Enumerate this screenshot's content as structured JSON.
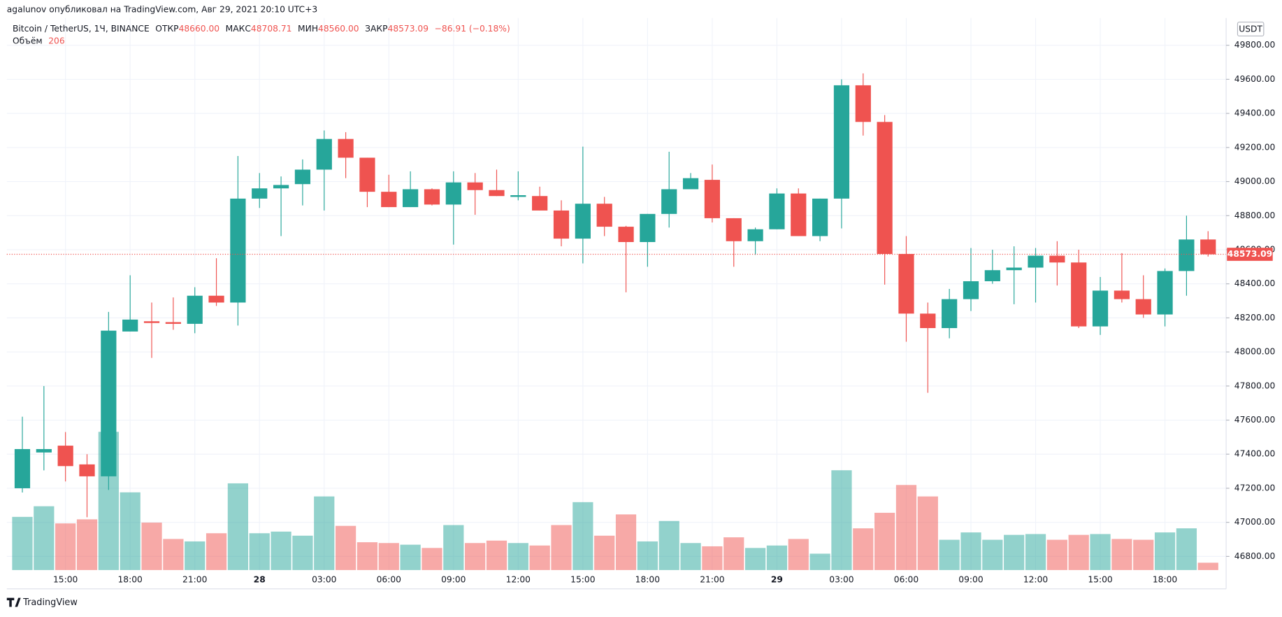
{
  "header": {
    "author_line": "agalunov опубликовал на TradingView.com, Авг 29, 2021 20:10 UTC+3"
  },
  "chart_data": {
    "type": "candlestick",
    "legend": {
      "symbol": "Bitcoin / TetherUS, 1Ч, BINANCE",
      "open_label": "ОТКР",
      "open": "48660.00",
      "high_label": "МАКС",
      "high": "48708.71",
      "low_label": "МИН",
      "low": "48560.00",
      "close_label": "ЗАКР",
      "close": "48573.09",
      "change": "−86.91 (−0.18%)",
      "volume_label": "Объём",
      "volume": "206"
    },
    "currency": "USDT",
    "up_color": "#26a69a",
    "down_color": "#ef5350",
    "grid": true,
    "categories": [
      null,
      null,
      "15:00",
      null,
      null,
      "18:00",
      null,
      null,
      "21:00",
      null,
      null,
      "28",
      null,
      null,
      "03:00",
      null,
      null,
      "06:00",
      null,
      null,
      "09:00",
      null,
      null,
      "12:00",
      null,
      null,
      "15:00",
      null,
      null,
      "18:00",
      null,
      null,
      "21:00",
      null,
      null,
      "29",
      null,
      null,
      "03:00",
      null,
      null,
      "06:00",
      null,
      null,
      "09:00",
      null,
      null,
      "12:00",
      null,
      null,
      "15:00",
      null,
      null,
      "18:00",
      null,
      null
    ],
    "open": [
      47200,
      47410,
      47450,
      47340,
      47270,
      48120,
      48180,
      48175,
      48165,
      48330,
      48290,
      48900,
      48960,
      48985,
      49070,
      49250,
      49140,
      48940,
      48850,
      48955,
      48865,
      48995,
      48950,
      48910,
      48915,
      48830,
      48665,
      48870,
      48735,
      48645,
      48810,
      48955,
      49010,
      48785,
      48650,
      48720,
      48930,
      48680,
      48900,
      49565,
      49350,
      48575,
      48225,
      48140,
      48310,
      48415,
      48480,
      48495,
      48565,
      48525,
      48150,
      48360,
      48310,
      48220,
      48475,
      48660
    ],
    "high": [
      47620,
      47800,
      47530,
      47400,
      48235,
      48450,
      48290,
      48320,
      48380,
      48550,
      49150,
      49050,
      49030,
      49130,
      49300,
      49290,
      49140,
      49040,
      49060,
      48960,
      49060,
      49050,
      49070,
      49060,
      48970,
      48890,
      49205,
      48910,
      48740,
      48810,
      49175,
      49050,
      49100,
      48785,
      48730,
      48960,
      48960,
      48900,
      49600,
      49635,
      49390,
      48680,
      48290,
      48370,
      48610,
      48600,
      48620,
      48610,
      48650,
      48600,
      48440,
      48580,
      48450,
      48490,
      48800,
      48708.71
    ],
    "low": [
      47175,
      47305,
      47240,
      47030,
      47190,
      48120,
      47965,
      48130,
      48110,
      48270,
      48155,
      48845,
      48680,
      48860,
      48830,
      49020,
      48850,
      48850,
      48850,
      48860,
      48630,
      48805,
      48915,
      48890,
      48830,
      48620,
      48520,
      48680,
      48350,
      48500,
      48730,
      48955,
      48760,
      48500,
      48570,
      48720,
      48680,
      48650,
      48725,
      49270,
      48395,
      48060,
      47760,
      48080,
      48240,
      48400,
      48280,
      48290,
      48390,
      48140,
      48100,
      48290,
      48200,
      48150,
      48330,
      48560
    ],
    "close": [
      47430,
      47430,
      47330,
      47270,
      48125,
      48190,
      48170,
      48165,
      48330,
      48290,
      48900,
      48960,
      48980,
      49070,
      49250,
      49140,
      48940,
      48850,
      48955,
      48865,
      48995,
      48950,
      48915,
      48920,
      48830,
      48665,
      48870,
      48735,
      48645,
      48810,
      48955,
      49020,
      48785,
      48650,
      48720,
      48930,
      48680,
      48900,
      49565,
      49350,
      48575,
      48225,
      48140,
      48310,
      48415,
      48480,
      48495,
      48565,
      48525,
      48150,
      48360,
      48310,
      48220,
      48475,
      48660,
      48573.09
    ],
    "volume": [
      1495,
      1794,
      1311,
      1426,
      3887,
      2185,
      1334,
      874,
      805,
      1035,
      2438,
      1035,
      1081,
      966,
      2070,
      1242,
      782,
      759,
      713,
      621,
      1265,
      759,
      828,
      759,
      690,
      1265,
      1909,
      966,
      1564,
      805,
      1380,
      759,
      667,
      920,
      621,
      690,
      874,
      460,
      2806,
      1173,
      1610,
      2392,
      2070,
      851,
      1058,
      851,
      989,
      1012,
      851,
      989,
      1012,
      874,
      851,
      1058,
      1173,
      206
    ],
    "ylim": [
      46720,
      49960
    ],
    "yticks": [
      {
        "value": 46800,
        "label": "46800.00"
      },
      {
        "value": 47000,
        "label": "47000.00"
      },
      {
        "value": 47200,
        "label": "47200.00"
      },
      {
        "value": 47400,
        "label": "47400.00"
      },
      {
        "value": 47600,
        "label": "47600.00"
      },
      {
        "value": 47800,
        "label": "47800.00"
      },
      {
        "value": 48000,
        "label": "48000.00"
      },
      {
        "value": 48200,
        "label": "48200.00"
      },
      {
        "value": 48400,
        "label": "48400.00"
      },
      {
        "value": 48600,
        "label": "48600.00"
      },
      {
        "value": 48800,
        "label": "48800.00"
      },
      {
        "value": 49000,
        "label": "49000.00"
      },
      {
        "value": 49200,
        "label": "49200.00"
      },
      {
        "value": 49400,
        "label": "49400.00"
      },
      {
        "value": 49600,
        "label": "49600.00"
      },
      {
        "value": 49800,
        "label": "49800.00"
      }
    ]
  },
  "footer": {
    "brand": "TradingView"
  }
}
